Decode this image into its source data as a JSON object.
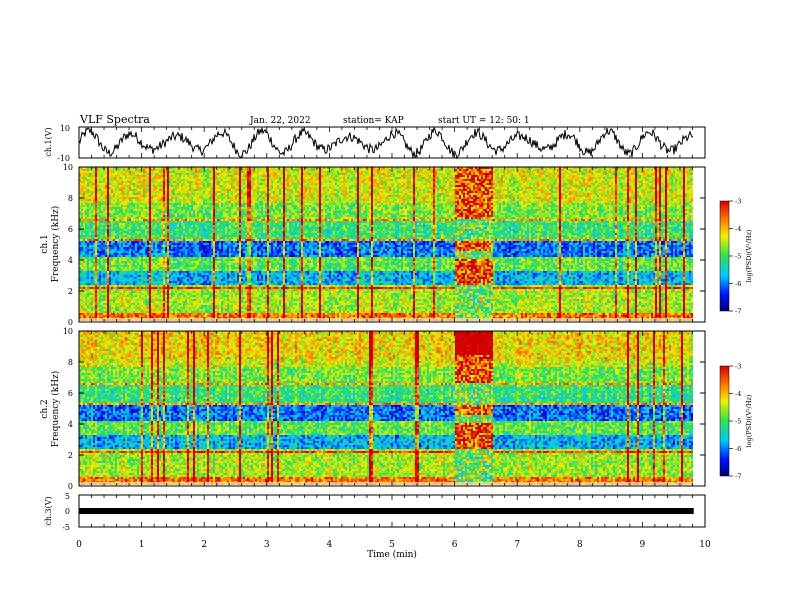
{
  "header": {
    "title": "VLF Spectra",
    "date": "Jan. 22, 2022",
    "station": "station= KAP",
    "start": "start UT =  12: 50: 1"
  },
  "colors": {
    "low": "#0a00b0",
    "mid": "#30e050",
    "high": "#e00000",
    "trace": "#000000"
  },
  "chart_data": {
    "type": "heatmap",
    "xlabel": "Time (min)",
    "xlim": [
      0,
      10
    ],
    "x_ticks": [
      "0",
      "1",
      "2",
      "3",
      "4",
      "5",
      "6",
      "7",
      "8",
      "9",
      "10"
    ],
    "panels": [
      {
        "ylabel": "ch.1(V)",
        "ylim": [
          -10,
          10
        ],
        "y_ticks": [
          "10",
          "-10"
        ],
        "kind": "waveform"
      },
      {
        "ylabel1": "ch.1",
        "ylabel2": "Frequency (kHz)",
        "ylim": [
          0,
          10
        ],
        "y_ticks": [
          "10",
          "8",
          "6",
          "4",
          "2",
          "0"
        ],
        "kind": "spectrogram",
        "colorbar": {
          "label": "log(PSD)(V²/Hz)",
          "ticks": [
            "-3",
            "-4",
            "-5",
            "-6",
            "-7"
          ],
          "range": [
            -7,
            -3
          ]
        }
      },
      {
        "ylabel1": "ch.2",
        "ylabel2": "Frequency (kHz)",
        "ylim": [
          0,
          10
        ],
        "y_ticks": [
          "10",
          "8",
          "6",
          "4",
          "2",
          "0"
        ],
        "kind": "spectrogram",
        "colorbar": {
          "label": "log(PSD)(V²/Hz)",
          "ticks": [
            "-3",
            "-4",
            "-5",
            "-6",
            "-7"
          ],
          "range": [
            -7,
            -3
          ]
        }
      },
      {
        "ylabel": "ch.3(V)",
        "ylim": [
          -5,
          5
        ],
        "y_ticks": [
          "5",
          "0",
          "-5"
        ],
        "kind": "waveform"
      }
    ],
    "disturbance_interval_min": [
      6.0,
      6.6
    ],
    "data_end_min": 9.82
  }
}
